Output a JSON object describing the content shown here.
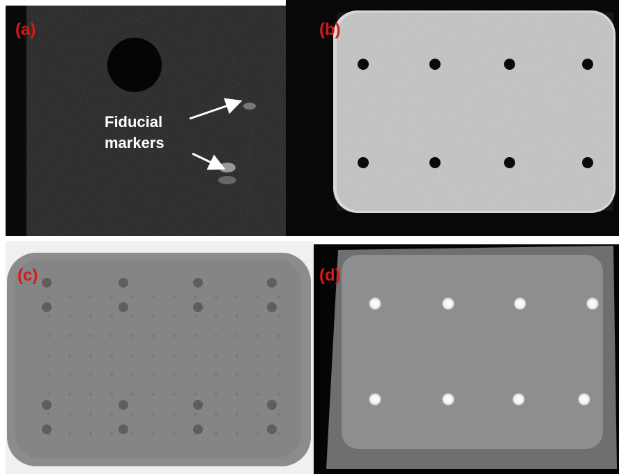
{
  "panels": [
    {
      "label": "(a)"
    },
    {
      "label": "(b)"
    },
    {
      "label": "(c)"
    },
    {
      "label": "(d)"
    }
  ],
  "annotation": {
    "lines": [
      "Fiducial",
      "markers"
    ]
  }
}
